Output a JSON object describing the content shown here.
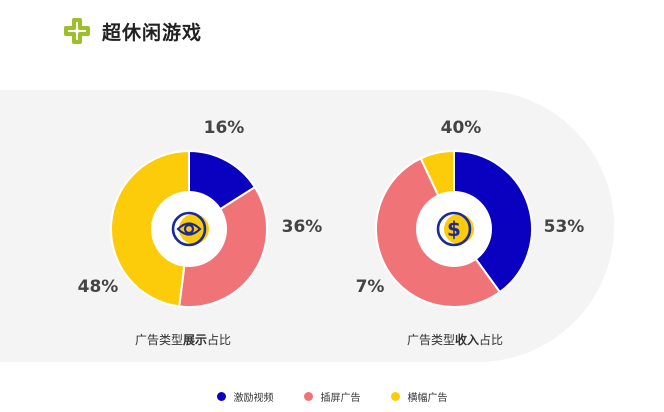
{
  "header": {
    "title": "超休闲游戏",
    "icon": "plus-cross-icon",
    "icon_color": "#9dbf2a"
  },
  "colors": {
    "rewarded": "#0a00c0",
    "interstitial": "#f07378",
    "banner": "#fccc0a"
  },
  "chart_data": [
    {
      "type": "pie",
      "subtitle_prefix": "广告类型",
      "subtitle_emphasis": "展示",
      "subtitle_suffix": "占比",
      "center_icon": "eye-icon",
      "slices": [
        {
          "name": "激励视频",
          "value": 16,
          "label": "16%",
          "color": "#0a00c0"
        },
        {
          "name": "插屏广告",
          "value": 36,
          "label": "36%",
          "color": "#f07378"
        },
        {
          "name": "横幅广告",
          "value": 48,
          "label": "48%",
          "color": "#fccc0a"
        }
      ]
    },
    {
      "type": "pie",
      "subtitle_prefix": "广告类型",
      "subtitle_emphasis": "收入",
      "subtitle_suffix": "占比",
      "center_icon": "dollar-icon",
      "slices": [
        {
          "name": "激励视频",
          "value": 40,
          "label": "40%",
          "color": "#0a00c0"
        },
        {
          "name": "插屏广告",
          "value": 53,
          "label": "53%",
          "color": "#f07378"
        },
        {
          "name": "横幅广告",
          "value": 7,
          "label": "7%",
          "color": "#fccc0a"
        }
      ]
    }
  ],
  "legend": [
    {
      "label": "激励视频",
      "color": "#0a00c0"
    },
    {
      "label": "插屏广告",
      "color": "#f07378"
    },
    {
      "label": "横幅广告",
      "color": "#fccc0a"
    }
  ]
}
